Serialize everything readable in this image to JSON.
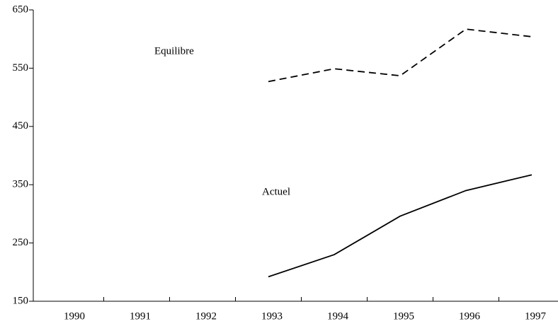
{
  "chart_data": {
    "type": "line",
    "categories": [
      "1990",
      "1991",
      "1992",
      "1993",
      "1994",
      "1995",
      "1996",
      "1997"
    ],
    "series": [
      {
        "name": "Equilibre",
        "color": "#000000",
        "dash": true,
        "values": [
          null,
          null,
          null,
          527,
          549,
          537,
          617,
          604
        ]
      },
      {
        "name": "Actuel",
        "color": "#000000",
        "dash": false,
        "values": [
          null,
          null,
          null,
          192,
          230,
          296,
          340,
          367
        ]
      }
    ],
    "ylim": [
      150,
      650
    ],
    "yticks": [
      150,
      250,
      350,
      450,
      550,
      650
    ],
    "grid": false
  }
}
